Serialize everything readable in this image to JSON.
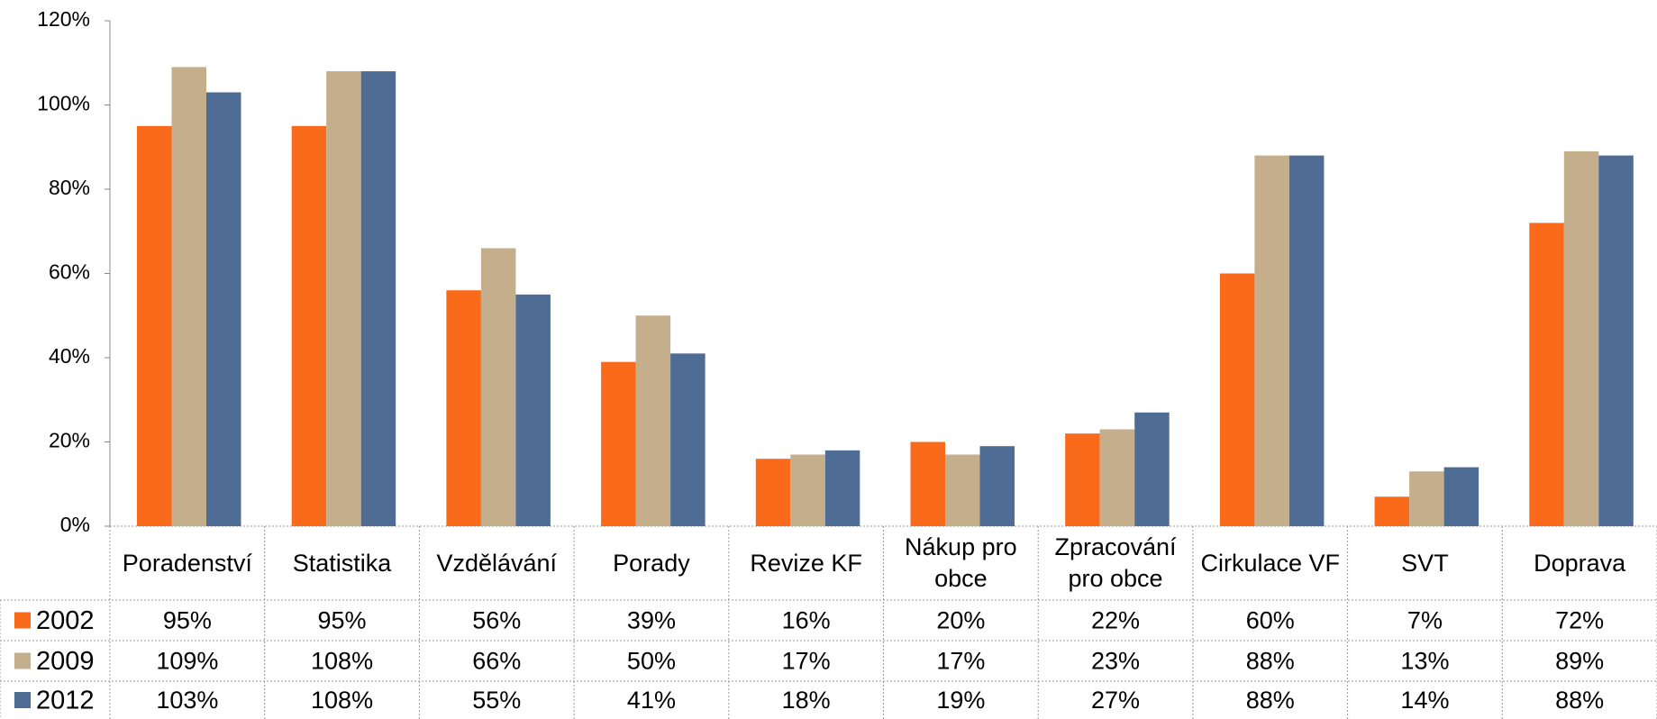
{
  "chart_data": {
    "type": "bar",
    "categories": [
      "Poradenství",
      "Statistika",
      "Vzdělávání",
      "Porady",
      "Revize KF",
      "Nákup pro obce",
      "Zpracování pro obce",
      "Cirkulace VF",
      "SVT",
      "Doprava"
    ],
    "series": [
      {
        "name": "2002",
        "color": "#f96a1b",
        "values": [
          95,
          95,
          56,
          39,
          16,
          20,
          22,
          60,
          7,
          72
        ],
        "value_labels": [
          "95%",
          "95%",
          "56%",
          "39%",
          "16%",
          "20%",
          "22%",
          "60%",
          "7%",
          "72%"
        ]
      },
      {
        "name": "2009",
        "color": "#c4ae8c",
        "values": [
          109,
          108,
          66,
          50,
          17,
          17,
          23,
          88,
          13,
          89
        ],
        "value_labels": [
          "109%",
          "108%",
          "66%",
          "50%",
          "17%",
          "17%",
          "23%",
          "88%",
          "13%",
          "89%"
        ]
      },
      {
        "name": "2012",
        "color": "#4f6c94",
        "values": [
          103,
          108,
          55,
          41,
          18,
          19,
          27,
          88,
          14,
          88
        ],
        "value_labels": [
          "103%",
          "108%",
          "55%",
          "41%",
          "18%",
          "19%",
          "27%",
          "88%",
          "14%",
          "88%"
        ]
      }
    ],
    "ylim": [
      0,
      120
    ],
    "yticks": [
      {
        "value": 0,
        "label": "0%"
      },
      {
        "value": 20,
        "label": "20%"
      },
      {
        "value": 40,
        "label": "40%"
      },
      {
        "value": 60,
        "label": "60%"
      },
      {
        "value": 80,
        "label": "80%"
      },
      {
        "value": 100,
        "label": "100%"
      },
      {
        "value": 120,
        "label": "120%"
      }
    ],
    "grid": false
  }
}
